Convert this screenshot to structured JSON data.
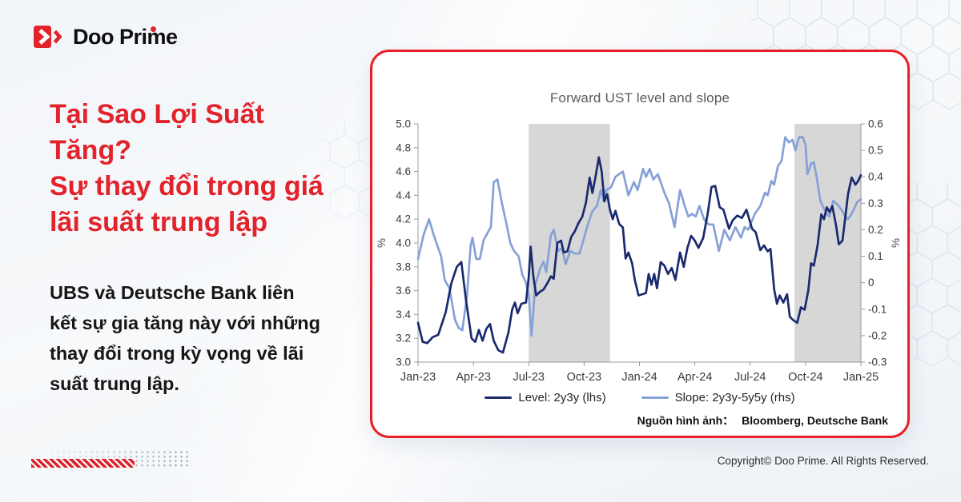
{
  "brand": {
    "logo_text": "Doo Prime"
  },
  "headline": {
    "lines": [
      "Tại Sao Lợi Suất",
      "Tăng?",
      "Sự thay đổi trong giá",
      "lãi suất trung lập"
    ]
  },
  "body": {
    "lines": [
      "UBS và Deutsche Bank liên",
      "kết sự gia tăng này với những",
      "thay đổi trong kỳ vọng về lãi",
      "suất trung lập."
    ]
  },
  "card": {
    "source_label": "Nguồn hình ảnh：",
    "source_value": "Bloomberg, Deutsche Bank"
  },
  "footer": {
    "copyright": "Copyright© Doo Prime. All Rights Reserved."
  },
  "colors": {
    "brand_red": "#e3232b",
    "card_border_red": "#ea1e26",
    "level_navy": "#1b2a6e",
    "slope_blue": "#86a1d6",
    "shaded_band_gray": "#d7d7d7",
    "axis_gray": "#9b9b9b",
    "title_gray": "#595959"
  },
  "chart_data": {
    "type": "line",
    "title": "Forward UST level and slope",
    "x_axis": {
      "tick_labels": [
        "Jan-23",
        "Apr-23",
        "Jul-23",
        "Oct-23",
        "Jan-24",
        "Apr-24",
        "Jul-24",
        "Oct-24",
        "Jan-25"
      ],
      "tick_months": [
        0,
        3,
        6,
        9,
        12,
        15,
        18,
        21,
        24
      ],
      "range_months": [
        0,
        24
      ]
    },
    "left_axis": {
      "label": "%",
      "min": 3.0,
      "max": 5.0,
      "ticks": [
        "5.0",
        "4.8",
        "4.6",
        "4.4",
        "4.2",
        "4.0",
        "3.8",
        "3.6",
        "3.4",
        "3.2",
        "3.0"
      ]
    },
    "right_axis": {
      "label": "%",
      "min": -0.3,
      "max": 0.6,
      "ticks": [
        "0.6",
        "0.5",
        "0.4",
        "0.3",
        "0.2",
        "0.1",
        "0",
        "-0.1",
        "-0.2",
        "-0.3"
      ]
    },
    "shaded_bands": [
      {
        "start_month": 6.0,
        "end_month": 10.4
      },
      {
        "start_month": 20.4,
        "end_month": 24.0
      }
    ],
    "grid": false,
    "legend_position": "bottom",
    "series": [
      {
        "name": "Slope: 2y3y-5y5y (rhs)",
        "axis": "right",
        "color": "#86a1d6",
        "points": [
          [
            0,
            0.09
          ],
          [
            0.3,
            0.18
          ],
          [
            0.6,
            0.24
          ],
          [
            0.85,
            0.18
          ],
          [
            1.0,
            0.15
          ],
          [
            1.25,
            0.1
          ],
          [
            1.45,
            0.01
          ],
          [
            1.7,
            -0.02
          ],
          [
            2.0,
            -0.14
          ],
          [
            2.2,
            -0.17
          ],
          [
            2.4,
            -0.18
          ],
          [
            2.65,
            -0.05
          ],
          [
            2.85,
            0.14
          ],
          [
            2.95,
            0.17
          ],
          [
            3.15,
            0.09
          ],
          [
            3.35,
            0.09
          ],
          [
            3.55,
            0.16
          ],
          [
            3.7,
            0.18
          ],
          [
            3.95,
            0.21
          ],
          [
            4.1,
            0.38
          ],
          [
            4.3,
            0.39
          ],
          [
            4.55,
            0.3
          ],
          [
            4.8,
            0.22
          ],
          [
            5.0,
            0.15
          ],
          [
            5.2,
            0.12
          ],
          [
            5.45,
            0.1
          ],
          [
            5.65,
            0.03
          ],
          [
            5.85,
            0.0
          ],
          [
            6.0,
            -0.05
          ],
          [
            6.15,
            -0.2
          ],
          [
            6.35,
            -0.01
          ],
          [
            6.6,
            0.05
          ],
          [
            6.8,
            0.08
          ],
          [
            6.95,
            0.04
          ],
          [
            7.2,
            0.18
          ],
          [
            7.35,
            0.2
          ],
          [
            7.6,
            0.12
          ],
          [
            7.8,
            0.13
          ],
          [
            8.0,
            0.07
          ],
          [
            8.25,
            0.12
          ],
          [
            8.5,
            0.11
          ],
          [
            8.75,
            0.11
          ],
          [
            9.0,
            0.17
          ],
          [
            9.2,
            0.22
          ],
          [
            9.45,
            0.27
          ],
          [
            9.7,
            0.29
          ],
          [
            9.9,
            0.35
          ],
          [
            10.05,
            0.31
          ],
          [
            10.2,
            0.35
          ],
          [
            10.45,
            0.36
          ],
          [
            10.7,
            0.4
          ],
          [
            11.1,
            0.42
          ],
          [
            11.4,
            0.33
          ],
          [
            11.7,
            0.38
          ],
          [
            11.9,
            0.35
          ],
          [
            12.2,
            0.43
          ],
          [
            12.35,
            0.4
          ],
          [
            12.55,
            0.43
          ],
          [
            12.75,
            0.39
          ],
          [
            13.0,
            0.41
          ],
          [
            13.35,
            0.34
          ],
          [
            13.6,
            0.3
          ],
          [
            13.9,
            0.21
          ],
          [
            14.2,
            0.35
          ],
          [
            14.45,
            0.29
          ],
          [
            14.65,
            0.25
          ],
          [
            14.85,
            0.26
          ],
          [
            15.05,
            0.25
          ],
          [
            15.25,
            0.29
          ],
          [
            15.5,
            0.24
          ],
          [
            15.75,
            0.22
          ],
          [
            16.0,
            0.22
          ],
          [
            16.3,
            0.12
          ],
          [
            16.6,
            0.2
          ],
          [
            16.9,
            0.16
          ],
          [
            17.2,
            0.21
          ],
          [
            17.5,
            0.17
          ],
          [
            17.7,
            0.21
          ],
          [
            17.9,
            0.2
          ],
          [
            18.25,
            0.26
          ],
          [
            18.55,
            0.29
          ],
          [
            18.8,
            0.34
          ],
          [
            18.95,
            0.33
          ],
          [
            19.15,
            0.385
          ],
          [
            19.3,
            0.37
          ],
          [
            19.5,
            0.44
          ],
          [
            19.7,
            0.46
          ],
          [
            19.9,
            0.55
          ],
          [
            20.1,
            0.53
          ],
          [
            20.3,
            0.54
          ],
          [
            20.45,
            0.5
          ],
          [
            20.65,
            0.55
          ],
          [
            20.85,
            0.55
          ],
          [
            21.0,
            0.52
          ],
          [
            21.1,
            0.41
          ],
          [
            21.3,
            0.45
          ],
          [
            21.45,
            0.455
          ],
          [
            21.6,
            0.4
          ],
          [
            21.8,
            0.31
          ],
          [
            22.0,
            0.28
          ],
          [
            22.15,
            0.26
          ],
          [
            22.3,
            0.25
          ],
          [
            22.5,
            0.31
          ],
          [
            22.65,
            0.3
          ],
          [
            22.8,
            0.29
          ],
          [
            23.0,
            0.27
          ],
          [
            23.15,
            0.25
          ],
          [
            23.3,
            0.24
          ],
          [
            23.5,
            0.26
          ],
          [
            23.8,
            0.305
          ],
          [
            24,
            0.315
          ]
        ]
      },
      {
        "name": "Level: 2y3y (lhs)",
        "axis": "left",
        "color": "#1b2a6e",
        "points": [
          [
            0,
            3.33
          ],
          [
            0.25,
            3.17
          ],
          [
            0.5,
            3.16
          ],
          [
            0.8,
            3.21
          ],
          [
            1.1,
            3.23
          ],
          [
            1.5,
            3.42
          ],
          [
            1.8,
            3.66
          ],
          [
            2.1,
            3.8
          ],
          [
            2.35,
            3.84
          ],
          [
            2.6,
            3.52
          ],
          [
            2.9,
            3.2
          ],
          [
            3.1,
            3.17
          ],
          [
            3.3,
            3.27
          ],
          [
            3.5,
            3.18
          ],
          [
            3.7,
            3.28
          ],
          [
            3.9,
            3.32
          ],
          [
            4.1,
            3.18
          ],
          [
            4.35,
            3.1
          ],
          [
            4.6,
            3.08
          ],
          [
            4.9,
            3.25
          ],
          [
            5.1,
            3.44
          ],
          [
            5.25,
            3.5
          ],
          [
            5.4,
            3.41
          ],
          [
            5.6,
            3.49
          ],
          [
            5.85,
            3.5
          ],
          [
            6.0,
            3.72
          ],
          [
            6.1,
            3.97
          ],
          [
            6.25,
            3.72
          ],
          [
            6.4,
            3.56
          ],
          [
            6.6,
            3.59
          ],
          [
            6.8,
            3.61
          ],
          [
            7.0,
            3.66
          ],
          [
            7.2,
            3.72
          ],
          [
            7.35,
            3.7
          ],
          [
            7.55,
            4.0
          ],
          [
            7.75,
            4.02
          ],
          [
            7.9,
            3.92
          ],
          [
            8.1,
            3.93
          ],
          [
            8.3,
            4.05
          ],
          [
            8.5,
            4.1
          ],
          [
            8.7,
            4.17
          ],
          [
            8.9,
            4.22
          ],
          [
            9.1,
            4.34
          ],
          [
            9.3,
            4.55
          ],
          [
            9.45,
            4.42
          ],
          [
            9.6,
            4.54
          ],
          [
            9.8,
            4.72
          ],
          [
            9.95,
            4.6
          ],
          [
            10.1,
            4.35
          ],
          [
            10.25,
            4.41
          ],
          [
            10.4,
            4.28
          ],
          [
            10.55,
            4.2
          ],
          [
            10.7,
            4.27
          ],
          [
            10.9,
            4.16
          ],
          [
            11.1,
            4.13
          ],
          [
            11.25,
            3.87
          ],
          [
            11.4,
            3.92
          ],
          [
            11.6,
            3.83
          ],
          [
            11.75,
            3.69
          ],
          [
            11.95,
            3.56
          ],
          [
            12.15,
            3.57
          ],
          [
            12.35,
            3.58
          ],
          [
            12.5,
            3.74
          ],
          [
            12.65,
            3.65
          ],
          [
            12.8,
            3.74
          ],
          [
            12.95,
            3.62
          ],
          [
            13.15,
            3.84
          ],
          [
            13.35,
            3.81
          ],
          [
            13.55,
            3.74
          ],
          [
            13.75,
            3.79
          ],
          [
            13.95,
            3.69
          ],
          [
            14.2,
            3.92
          ],
          [
            14.4,
            3.8
          ],
          [
            14.6,
            3.96
          ],
          [
            14.8,
            4.06
          ],
          [
            15.0,
            4.02
          ],
          [
            15.2,
            3.96
          ],
          [
            15.45,
            4.04
          ],
          [
            15.7,
            4.25
          ],
          [
            15.9,
            4.47
          ],
          [
            16.1,
            4.48
          ],
          [
            16.35,
            4.3
          ],
          [
            16.55,
            4.28
          ],
          [
            16.85,
            4.12
          ],
          [
            17.05,
            4.19
          ],
          [
            17.3,
            4.23
          ],
          [
            17.55,
            4.21
          ],
          [
            17.8,
            4.28
          ],
          [
            18.1,
            4.12
          ],
          [
            18.3,
            4.09
          ],
          [
            18.55,
            3.94
          ],
          [
            18.75,
            3.98
          ],
          [
            18.95,
            3.93
          ],
          [
            19.1,
            3.95
          ],
          [
            19.3,
            3.61
          ],
          [
            19.45,
            3.49
          ],
          [
            19.6,
            3.56
          ],
          [
            19.8,
            3.5
          ],
          [
            20.0,
            3.57
          ],
          [
            20.15,
            3.38
          ],
          [
            20.35,
            3.35
          ],
          [
            20.55,
            3.33
          ],
          [
            20.75,
            3.46
          ],
          [
            20.95,
            3.44
          ],
          [
            21.15,
            3.6
          ],
          [
            21.3,
            3.83
          ],
          [
            21.45,
            3.81
          ],
          [
            21.65,
            3.98
          ],
          [
            21.85,
            4.24
          ],
          [
            22.0,
            4.2
          ],
          [
            22.15,
            4.3
          ],
          [
            22.3,
            4.26
          ],
          [
            22.45,
            4.31
          ],
          [
            22.65,
            4.15
          ],
          [
            22.8,
            3.99
          ],
          [
            23.0,
            4.02
          ],
          [
            23.15,
            4.21
          ],
          [
            23.3,
            4.41
          ],
          [
            23.5,
            4.55
          ],
          [
            23.7,
            4.49
          ],
          [
            23.85,
            4.52
          ],
          [
            24,
            4.57
          ]
        ]
      }
    ]
  }
}
